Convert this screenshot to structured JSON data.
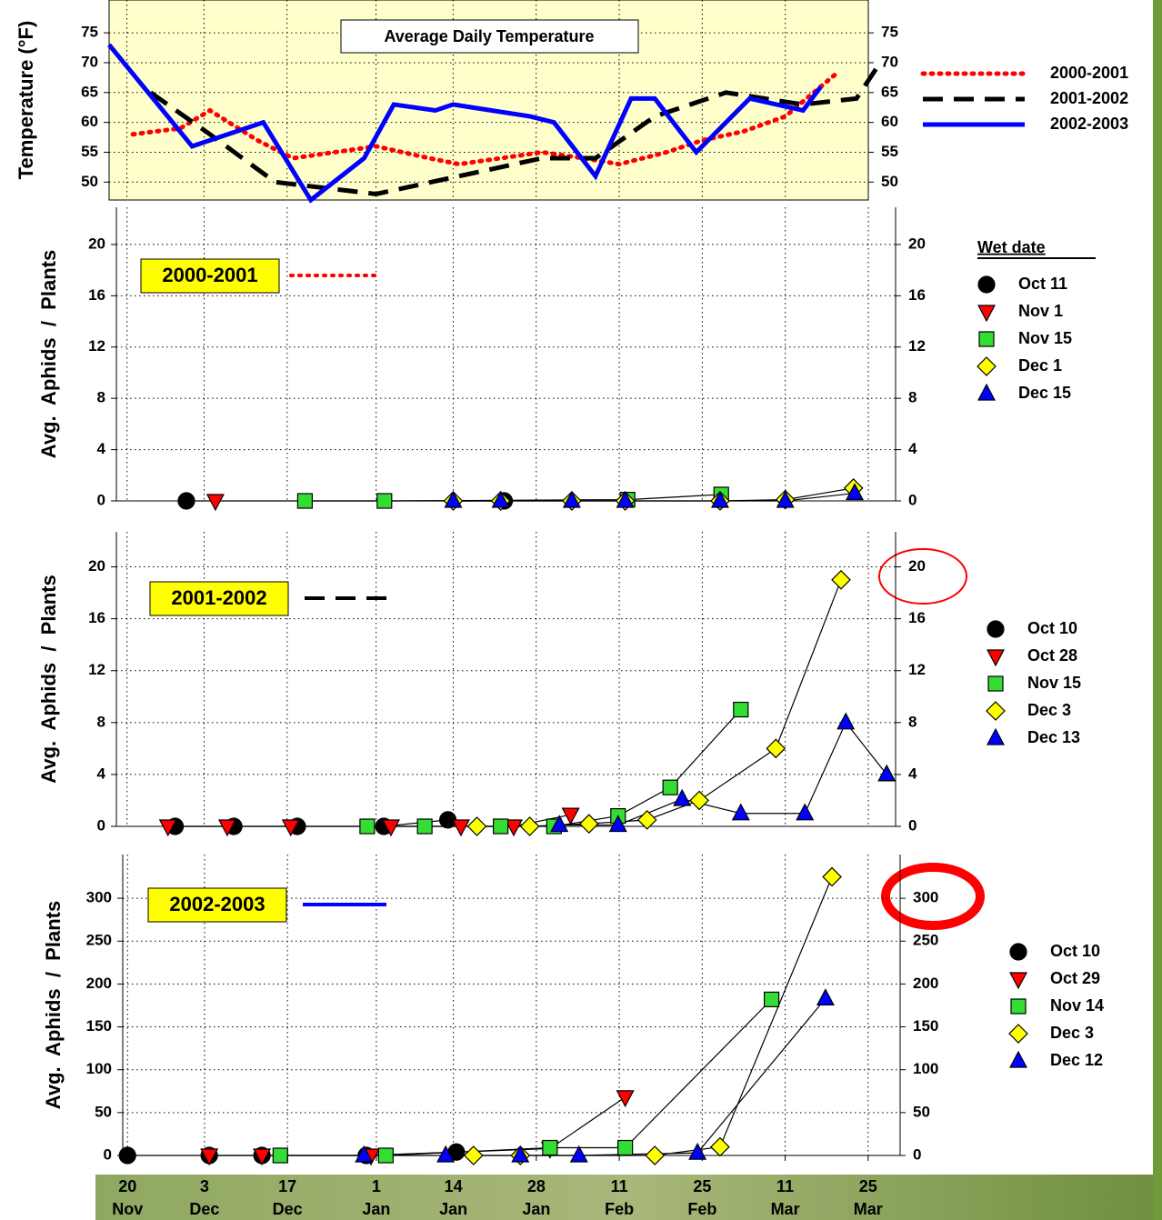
{
  "chart_data": [
    {
      "type": "line",
      "title": "Average Daily Temperature",
      "y_label": "Temperature (°F)",
      "xlim": [
        -3,
        125
      ],
      "ylim": [
        47,
        80.5
      ],
      "yticks": [
        50,
        55,
        60,
        65,
        70,
        75
      ],
      "background": "#ffffcc",
      "grid": true,
      "series": [
        {
          "name": "2000-2001",
          "color": "#ff0000",
          "dash": "dotted",
          "x": [
            1,
            9,
            14,
            22,
            28,
            42,
            51,
            56,
            70,
            77,
            83,
            91,
            97,
            104,
            111,
            120
          ],
          "values": [
            58,
            59,
            62,
            57,
            54,
            56,
            54,
            53,
            55,
            54,
            53,
            55,
            57,
            58.5,
            61,
            68.5
          ]
        },
        {
          "name": "2001-2002",
          "color": "#000000",
          "dash": "dashed",
          "x": [
            4,
            14,
            25,
            42,
            56,
            70,
            79,
            89,
            101,
            114,
            123,
            127
          ],
          "values": [
            65,
            58,
            50,
            48,
            51,
            54,
            54,
            61,
            65,
            63,
            64,
            70
          ]
        },
        {
          "name": "2002-2003",
          "color": "#0000ff",
          "dash": "solid",
          "x": [
            -3,
            11,
            23,
            31,
            40,
            45,
            52,
            55,
            68,
            72,
            79,
            85,
            89,
            96,
            105,
            114,
            117
          ],
          "values": [
            73,
            56,
            60,
            47,
            54,
            63,
            62,
            63,
            61,
            60,
            51,
            64,
            64,
            55,
            64,
            62,
            66
          ]
        }
      ]
    },
    {
      "type": "scatter",
      "label": "2000-2001",
      "label_line_color": "#ff0000",
      "label_line_dash": "dotted",
      "y_label": "Avg.  Aphids  /  Plants",
      "legend_title": "Wet date",
      "xlim": [
        -1.8,
        129.6
      ],
      "ylim": [
        0,
        22.9
      ],
      "yticks": [
        0,
        4,
        8,
        12,
        16,
        20
      ],
      "grid": true,
      "series": [
        {
          "name": "Oct 11",
          "marker": "circle",
          "color": "#000000",
          "x": [
            10,
            63.6
          ],
          "values": [
            0,
            0
          ]
        },
        {
          "name": "Nov 1",
          "marker": "triangle-down",
          "color": "#ff0000",
          "x": [
            14.9
          ],
          "values": [
            0
          ]
        },
        {
          "name": "Nov 15",
          "marker": "square",
          "color": "#33dd33",
          "x": [
            30,
            43.4,
            84.4,
            100.2
          ],
          "values": [
            0,
            0,
            0.1,
            0.5
          ]
        },
        {
          "name": "Dec 1",
          "marker": "diamond",
          "color": "#ffff00",
          "x": [
            55,
            63,
            75,
            84,
            100,
            111,
            122.5
          ],
          "values": [
            0,
            0,
            0,
            0,
            0,
            0.1,
            1
          ]
        },
        {
          "name": "Dec 15",
          "marker": "triangle",
          "color": "#0000ff",
          "x": [
            55,
            63,
            75,
            84,
            100,
            111,
            122.7
          ],
          "values": [
            0,
            0,
            0,
            0,
            0,
            0,
            0.6
          ]
        }
      ]
    },
    {
      "type": "scatter",
      "label": "2001-2002",
      "label_line_color": "#000000",
      "label_line_dash": "dashed",
      "y_label": "Avg.  Aphids  /  Plants",
      "xlim": [
        -1.8,
        129.6
      ],
      "ylim": [
        0,
        22.7
      ],
      "yticks": [
        0,
        4,
        8,
        12,
        16,
        20
      ],
      "grid": true,
      "series": [
        {
          "name": "Oct 10",
          "marker": "circle",
          "color": "#000000",
          "x": [
            8.1,
            18,
            28.7,
            43.3,
            54.1
          ],
          "values": [
            0,
            0,
            0,
            0,
            0.5
          ]
        },
        {
          "name": "Oct 28",
          "marker": "triangle-down",
          "color": "#ff0000",
          "x": [
            6.9,
            16.9,
            27.6,
            44.5,
            56.3,
            65.2,
            74.8
          ],
          "values": [
            0,
            0,
            0,
            0,
            0,
            0,
            0.9
          ]
        },
        {
          "name": "Nov 15",
          "marker": "square",
          "color": "#33dd33",
          "x": [
            40.5,
            50.2,
            63,
            72,
            82.8,
            91.6,
            103.5
          ],
          "values": [
            0,
            0,
            0,
            0,
            0.8,
            3,
            9
          ]
        },
        {
          "name": "Dec 3",
          "marker": "diamond",
          "color": "#ffff00",
          "x": [
            59,
            67.9,
            77.9,
            87.7,
            96.5,
            109.4,
            120.4
          ],
          "values": [
            0,
            0,
            0.2,
            0.5,
            2,
            6,
            19
          ]
        },
        {
          "name": "Dec 13",
          "marker": "triangle",
          "color": "#0000ff",
          "x": [
            72.9,
            82.8,
            93.6,
            103.5,
            114.3,
            121.2,
            128.1
          ],
          "values": [
            0.1,
            0.1,
            2.1,
            1,
            1,
            8,
            4
          ]
        }
      ]
    },
    {
      "type": "scatter",
      "label": "2002-2003",
      "label_line_color": "#0000ff",
      "label_line_dash": "solid",
      "y_label": "Avg.  Aphids  /  Plants",
      "xlim": [
        -0.8,
        130.4
      ],
      "ylim": [
        0,
        351
      ],
      "yticks": [
        0,
        50,
        100,
        150,
        200,
        250,
        300
      ],
      "grid": true,
      "xticks": [
        {
          "value": 0,
          "label": "20"
        },
        {
          "value": 13,
          "label": "3"
        },
        {
          "value": 27,
          "label": "17"
        },
        {
          "value": 42,
          "label": "1"
        },
        {
          "value": 55,
          "label": "14"
        },
        {
          "value": 69,
          "label": "28"
        },
        {
          "value": 83,
          "label": "11"
        },
        {
          "value": 97,
          "label": "25"
        },
        {
          "value": 111,
          "label": "11"
        },
        {
          "value": 125,
          "label": "25"
        }
      ],
      "xtick_months": [
        "Nov",
        "Dec",
        "Dec",
        "Jan",
        "Jan",
        "Jan",
        "Feb",
        "Feb",
        "Mar",
        "Mar"
      ],
      "series": [
        {
          "name": "Oct 10",
          "marker": "circle",
          "color": "#000000",
          "x": [
            0,
            13.8,
            22.7,
            40.3,
            55.5
          ],
          "values": [
            0,
            0,
            0,
            0,
            4
          ]
        },
        {
          "name": "Oct 29",
          "marker": "triangle-down",
          "color": "#ff0000",
          "x": [
            13.8,
            22.7,
            41.1,
            71.3,
            84
          ],
          "values": [
            0,
            0,
            0,
            8,
            68
          ]
        },
        {
          "name": "Nov 14",
          "marker": "square",
          "color": "#33dd33",
          "x": [
            25.8,
            43.6,
            71.3,
            84,
            108.7
          ],
          "values": [
            0,
            0,
            9,
            9,
            182
          ]
        },
        {
          "name": "Dec 3",
          "marker": "diamond",
          "color": "#ffff00",
          "x": [
            58.4,
            66.3,
            89,
            100,
            118.9
          ],
          "values": [
            0,
            0,
            0,
            10,
            325
          ]
        },
        {
          "name": "Dec 12",
          "marker": "triangle",
          "color": "#0000ff",
          "x": [
            39.9,
            53.7,
            66.3,
            76.2,
            96.2,
            117.8
          ],
          "values": [
            0,
            0,
            0,
            0,
            3,
            183
          ]
        }
      ]
    }
  ]
}
